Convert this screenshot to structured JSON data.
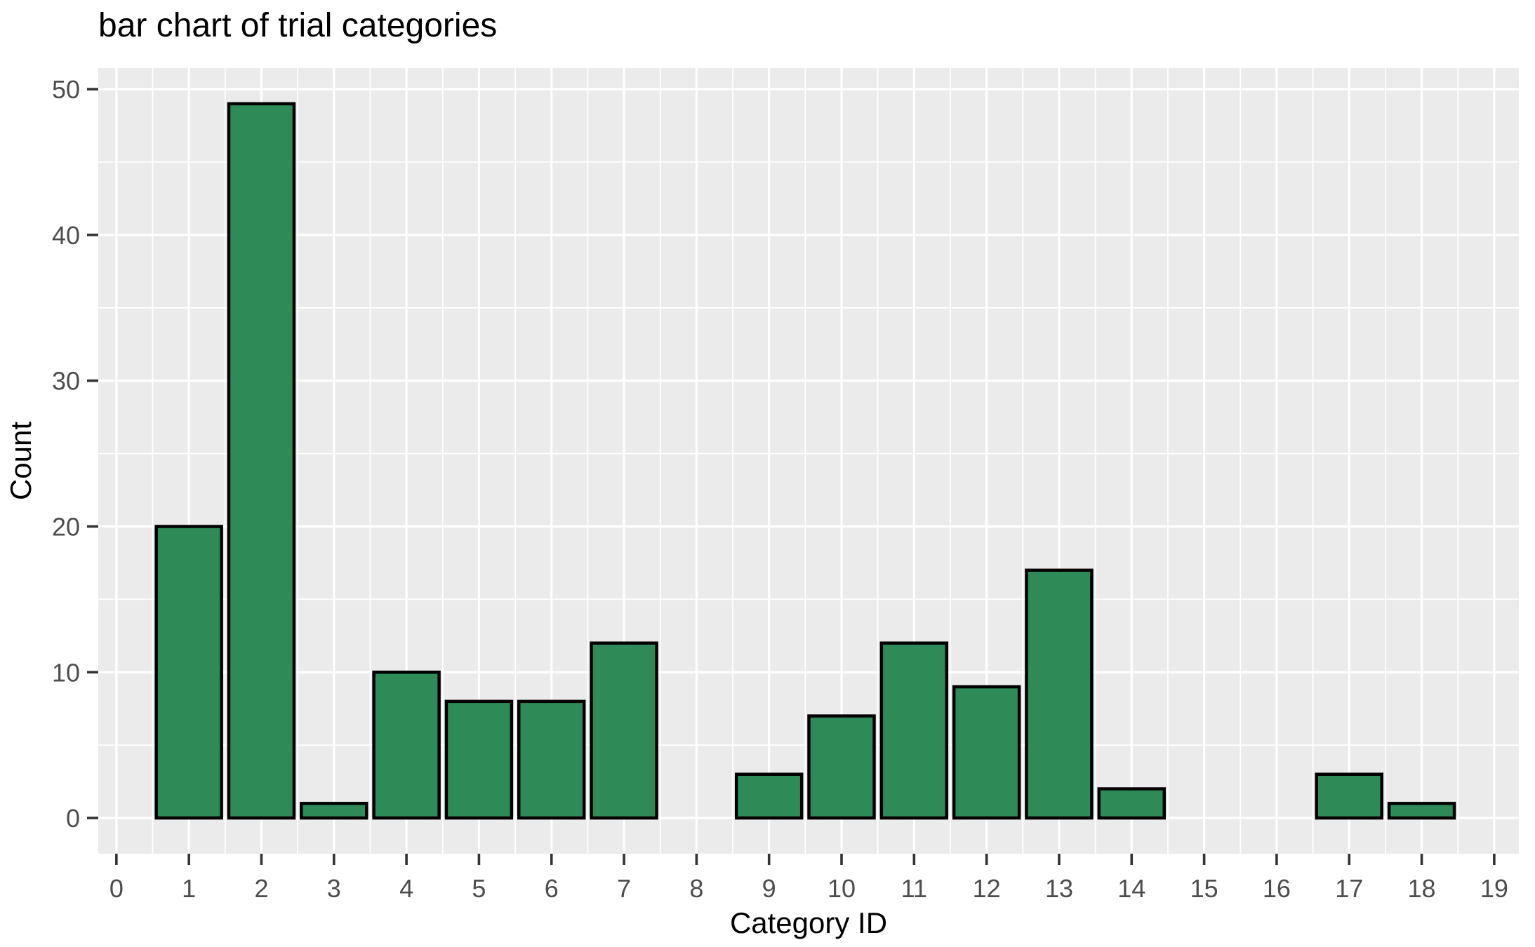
{
  "title": "bar chart of trial categories",
  "colors": {
    "bar_fill": "#2e8b57",
    "bar_stroke": "#000000",
    "panel_bg": "#ebebeb",
    "grid_line": "#ffffff",
    "tick_mark": "#333333",
    "tick_label": "#4d4d4d",
    "axis_title": "#000000",
    "background": "#ffffff"
  },
  "chart_data": {
    "type": "bar",
    "title": "bar chart of trial categories",
    "xlabel": "Category ID",
    "ylabel": "Count",
    "categories": [
      0,
      1,
      2,
      3,
      4,
      5,
      6,
      7,
      8,
      9,
      10,
      11,
      12,
      13,
      14,
      15,
      16,
      17,
      18,
      19
    ],
    "values": [
      0,
      20,
      49,
      1,
      10,
      8,
      8,
      12,
      0,
      3,
      7,
      12,
      9,
      17,
      2,
      0,
      0,
      3,
      1,
      0
    ],
    "bar_width": 0.9,
    "xlim": [
      -0.25,
      19.34
    ],
    "ylim": [
      -2.45,
      51.45
    ],
    "x_major_ticks": [
      0,
      1,
      2,
      3,
      4,
      5,
      6,
      7,
      8,
      9,
      10,
      11,
      12,
      13,
      14,
      15,
      16,
      17,
      18,
      19
    ],
    "y_major_ticks": [
      0,
      10,
      20,
      30,
      40,
      50
    ],
    "y_minor_ticks": [
      5,
      15,
      25,
      35,
      45
    ],
    "grid": "major+minor, white on gray panel",
    "legend": false,
    "style": "ggplot2 gray theme"
  }
}
